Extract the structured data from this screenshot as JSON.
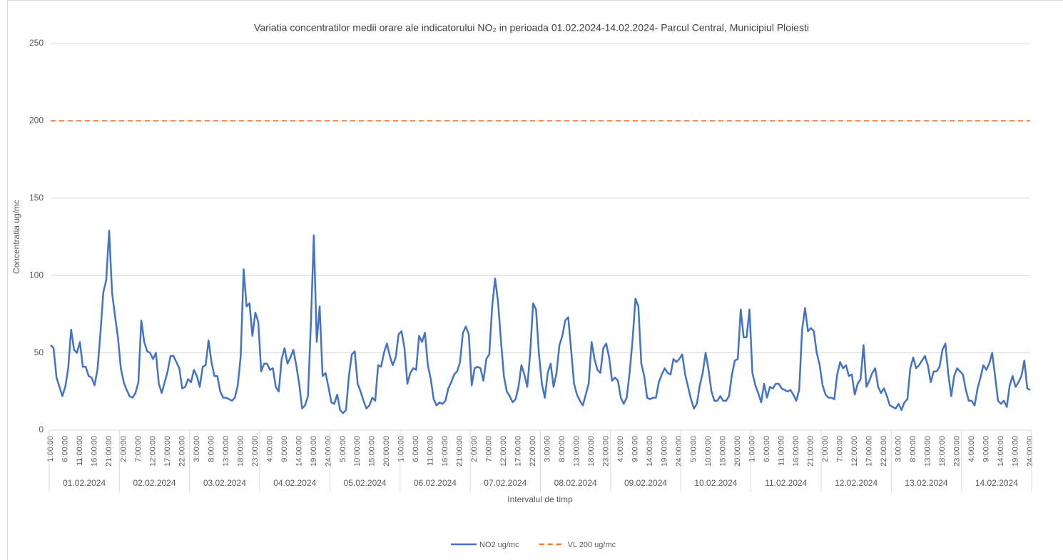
{
  "chart_data": {
    "type": "line",
    "title": "Variatia concentratilor medii orare ale indicatorului NO₂ in perioada 01.02.2024-14.02.2024- Parcul Central, Municipiul Ploiesti",
    "xlabel": "Intervalul de timp",
    "ylabel": "Concentratia ug/mc",
    "ylim": [
      0,
      250
    ],
    "yticks": [
      0,
      50,
      100,
      150,
      200,
      250
    ],
    "grid": true,
    "legend": "bottom",
    "day_groups": [
      "01.02.2024",
      "02.02.2024",
      "03.02.2024",
      "04.02.2024",
      "05.02.2024",
      "06.02.2024",
      "07.02.2024",
      "08.02.2024",
      "09.02.2024",
      "10.02.2024",
      "11.02.2024",
      "12.02.2024",
      "13.02.2024",
      "14.02.2024"
    ],
    "categories": [
      "1:00:00",
      null,
      null,
      null,
      null,
      "6:00:00",
      null,
      null,
      null,
      null,
      "11:00:00",
      null,
      null,
      null,
      null,
      "16:00:00",
      null,
      null,
      null,
      null,
      "21:00:00",
      null,
      null,
      null,
      null,
      "2:00:00",
      null,
      null,
      null,
      null,
      "7:00:00",
      null,
      null,
      null,
      null,
      "12:00:00",
      null,
      null,
      null,
      null,
      "17:00:00",
      null,
      null,
      null,
      null,
      "22:00:00",
      null,
      null,
      null,
      null,
      "3:00:00",
      null,
      null,
      null,
      null,
      "8:00:00",
      null,
      null,
      null,
      null,
      "13:00:00",
      null,
      null,
      null,
      null,
      "18:00:00",
      null,
      null,
      null,
      null,
      "23:00:00",
      null,
      null,
      null,
      null,
      "4:00:00",
      null,
      null,
      null,
      null,
      "9:00:00",
      null,
      null,
      null,
      null,
      "14:00:00",
      null,
      null,
      null,
      null,
      "19:00:00",
      null,
      null,
      null,
      null,
      "24:00:00",
      null,
      null,
      null,
      null,
      "5:00:00",
      null,
      null,
      null,
      null,
      "10:00:00",
      null,
      null,
      null,
      null,
      "15:00:00",
      null,
      null,
      null,
      null,
      "20:00:00",
      null,
      null,
      null,
      null,
      "1:00:00",
      null,
      null,
      null,
      null,
      "6:00:00",
      null,
      null,
      null,
      null,
      "11:00:00",
      null,
      null,
      null,
      null,
      "16:00:00",
      null,
      null,
      null,
      null,
      "21:00:00",
      null,
      null,
      null,
      null,
      "2:00:00",
      null,
      null,
      null,
      null,
      "7:00:00",
      null,
      null,
      null,
      null,
      "12:00:00",
      null,
      null,
      null,
      null,
      "17:00:00",
      null,
      null,
      null,
      null,
      "22:00:00",
      null,
      null,
      null,
      null,
      "3:00:00",
      null,
      null,
      null,
      null,
      "8:00:00",
      null,
      null,
      null,
      null,
      "13:00:00",
      null,
      null,
      null,
      null,
      "18:00:00",
      null,
      null,
      null,
      null,
      "23:00:00",
      null,
      null,
      null,
      null,
      "4:00:00",
      null,
      null,
      null,
      null,
      "9:00:00",
      null,
      null,
      null,
      null,
      "14:00:00",
      null,
      null,
      null,
      null,
      "19:00:00",
      null,
      null,
      null,
      null,
      "24:00:00",
      null,
      null,
      null,
      null,
      "5:00:00",
      null,
      null,
      null,
      null,
      "10:00:00",
      null,
      null,
      null,
      null,
      "15:00:00",
      null,
      null,
      null,
      null,
      "20:00:00",
      null,
      null,
      null,
      null,
      "1:00:00",
      null,
      null,
      null,
      null,
      "6:00:00",
      null,
      null,
      null,
      null,
      "11:00:00",
      null,
      null,
      null,
      null,
      "16:00:00",
      null,
      null,
      null,
      null,
      "21:00:00",
      null,
      null,
      null,
      null,
      "2:00:00",
      null,
      null,
      null,
      null,
      "7:00:00",
      null,
      null,
      null,
      null,
      "12:00:00",
      null,
      null,
      null,
      null,
      "17:00:00",
      null,
      null,
      null,
      null,
      "22:00:00",
      null,
      null,
      null,
      null,
      "3:00:00",
      null,
      null,
      null,
      null,
      "8:00:00",
      null,
      null,
      null,
      null,
      "13:00:00",
      null,
      null,
      null,
      null,
      "18:00:00",
      null,
      null,
      null,
      null,
      "23:00:00",
      null,
      null,
      null,
      null,
      "4:00:00",
      null,
      null,
      null,
      null,
      "9:00:00",
      null,
      null,
      null,
      null,
      "14:00:00",
      null,
      null,
      null,
      null,
      "19:00:00",
      null,
      null,
      null,
      null,
      "24:00:00"
    ],
    "series": [
      {
        "name": "NO2 ug/mc",
        "color": "#4472c4",
        "values": [
          55,
          53,
          34,
          28,
          22,
          28,
          40,
          65,
          52,
          50,
          57,
          41,
          41,
          35,
          34,
          29,
          39,
          62,
          89,
          97,
          129,
          89,
          74,
          60,
          40,
          31,
          26,
          22,
          21,
          24,
          31,
          71,
          57,
          51,
          50,
          46,
          50,
          30,
          24,
          31,
          38,
          48,
          48,
          44,
          40,
          27,
          28,
          33,
          31,
          39,
          35,
          28,
          41,
          42,
          58,
          44,
          35,
          35,
          25,
          21,
          21,
          20,
          19,
          21,
          29,
          48,
          104,
          80,
          82,
          61,
          76,
          70,
          38,
          43,
          43,
          39,
          40,
          28,
          25,
          46,
          53,
          43,
          47,
          52,
          42,
          30,
          14,
          16,
          22,
          69,
          126,
          57,
          80,
          35,
          37,
          28,
          18,
          17,
          23,
          13,
          11,
          13,
          35,
          49,
          51,
          30,
          25,
          19,
          14,
          16,
          21,
          19,
          42,
          41,
          50,
          56,
          48,
          42,
          47,
          62,
          64,
          53,
          30,
          37,
          40,
          39,
          61,
          57,
          63,
          42,
          33,
          20,
          16,
          18,
          17,
          19,
          27,
          31,
          36,
          38,
          44,
          63,
          67,
          62,
          29,
          40,
          41,
          40,
          32,
          46,
          49,
          80,
          98,
          83,
          58,
          35,
          25,
          22,
          18,
          20,
          28,
          42,
          36,
          28,
          50,
          82,
          78,
          49,
          30,
          21,
          37,
          43,
          28,
          37,
          55,
          61,
          71,
          73,
          52,
          30,
          23,
          19,
          16,
          23,
          30,
          57,
          46,
          39,
          37,
          53,
          56,
          47,
          32,
          34,
          32,
          21,
          17,
          21,
          37,
          58,
          85,
          80,
          43,
          35,
          21,
          20,
          21,
          21,
          31,
          36,
          40,
          37,
          36,
          46,
          44,
          46,
          49,
          36,
          28,
          20,
          14,
          17,
          29,
          37,
          50,
          39,
          25,
          19,
          19,
          22,
          19,
          19,
          22,
          36,
          45,
          46,
          78,
          60,
          60,
          78,
          37,
          29,
          24,
          18,
          30,
          21,
          28,
          27,
          30,
          30,
          27,
          26,
          25,
          26,
          23,
          19,
          26,
          65,
          79,
          64,
          66,
          64,
          50,
          42,
          29,
          23,
          21,
          21,
          20,
          36,
          44,
          40,
          42,
          35,
          36,
          23,
          30,
          33,
          55,
          28,
          32,
          37,
          40,
          28,
          24,
          27,
          22,
          16,
          15,
          14,
          17,
          13,
          18,
          20,
          40,
          47,
          40,
          42,
          45,
          48,
          42,
          31,
          38,
          38,
          41,
          52,
          56,
          36,
          22,
          35,
          40,
          38,
          36,
          26,
          19,
          19,
          16,
          27,
          34,
          42,
          39,
          43,
          50,
          35,
          19,
          17,
          19,
          15,
          29,
          35,
          28,
          31,
          35,
          45,
          27,
          26
        ]
      }
    ],
    "reference_lines": [
      {
        "name": "VL 200 ug/mc",
        "color": "#ed7d31",
        "value": 200,
        "dashed": true
      }
    ]
  }
}
